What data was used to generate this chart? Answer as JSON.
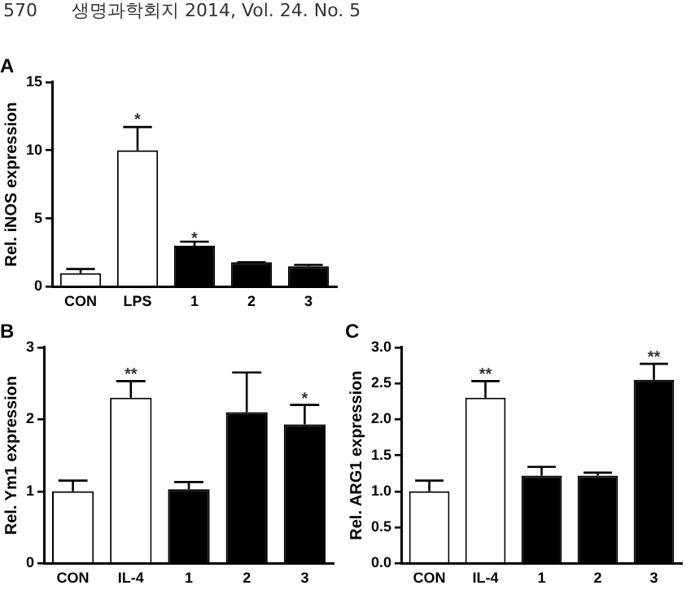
{
  "chart_data": [
    {
      "type": "bar",
      "title": "A",
      "ylabel": "Rel. iNOS expression",
      "categories": [
        "CON",
        "LPS",
        "1",
        "2",
        "3"
      ],
      "values": [
        1,
        10,
        3,
        1.8,
        1.5
      ],
      "colors": [
        "#ffffff",
        "#ffffff",
        "#000000",
        "#000000",
        "#000000"
      ],
      "errors": [
        [
          1,
          1.3
        ],
        [
          10,
          11.7
        ],
        [
          3,
          3.3
        ],
        [
          1.8,
          1.8
        ],
        [
          1.5,
          1.6
        ]
      ],
      "ylim": [
        0,
        15
      ],
      "yticks": [
        0,
        5,
        10,
        15
      ],
      "grid": false,
      "legend": false,
      "annotations": [
        "570      생명과학회지 2014, Vol. 24. No. 5",
        {
          "text": "*",
          "x": "LPS",
          "y": 12.2
        },
        {
          "text": "*",
          "x": "1",
          "y": 3.5
        }
      ]
    },
    {
      "type": "bar",
      "title": "B",
      "ylabel": "Rel. Ym1 expression",
      "categories": [
        "CON",
        "IL-4",
        "1",
        "2",
        "3"
      ],
      "values": [
        1.0,
        2.3,
        1.03,
        2.1,
        1.93
      ],
      "colors": [
        "#ffffff",
        "#ffffff",
        "#000000",
        "#000000",
        "#000000"
      ],
      "errors": [
        [
          1.0,
          1.15
        ],
        [
          2.3,
          2.53
        ],
        [
          1.03,
          1.13
        ],
        [
          2.1,
          2.65
        ],
        [
          1.93,
          2.2
        ]
      ],
      "ylim": [
        0,
        3
      ],
      "yticks": [
        0,
        1,
        2,
        3
      ],
      "grid": false,
      "legend": false,
      "annotations": [
        {
          "text": "**",
          "x": "IL-4",
          "y": 2.62
        },
        {
          "text": "*",
          "x": "3",
          "y": 2.28
        }
      ]
    },
    {
      "type": "bar",
      "title": "C",
      "ylabel": "Rel. ARG1 expression",
      "categories": [
        "CON",
        "IL-4",
        "1",
        "2",
        "3"
      ],
      "values": [
        1.0,
        2.3,
        1.22,
        1.22,
        2.55
      ],
      "colors": [
        "#ffffff",
        "#ffffff",
        "#000000",
        "#000000",
        "#000000"
      ],
      "errors": [
        [
          1.0,
          1.15
        ],
        [
          2.3,
          2.53
        ],
        [
          1.22,
          1.34
        ],
        [
          1.22,
          1.26
        ],
        [
          2.55,
          2.77
        ]
      ],
      "ylim": [
        0,
        3
      ],
      "yticks": [
        {
          "value": 0,
          "label": "0.0"
        },
        0.5,
        {
          "value": 1,
          "label": "1.0"
        },
        1.5,
        {
          "value": 2,
          "label": "2.0"
        },
        2.5,
        {
          "value": 3,
          "label": "3.0"
        }
      ],
      "grid": false,
      "legend": false,
      "annotations": [
        {
          "text": "**",
          "x": "IL-4",
          "y": 2.62
        },
        {
          "text": "**",
          "x": "3",
          "y": 2.86
        }
      ]
    }
  ]
}
